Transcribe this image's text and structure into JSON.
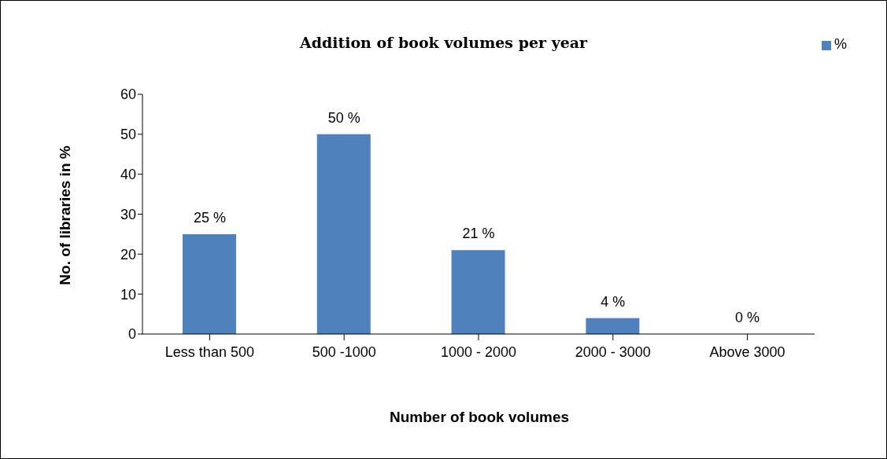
{
  "chart_data": {
    "type": "bar",
    "title": "Addition of book volumes per year",
    "xlabel": "Number of book volumes",
    "ylabel": "No. of libraries in %",
    "categories": [
      "Less than 500",
      "500 -1000",
      "1000 - 2000",
      "2000 - 3000",
      "Above 3000"
    ],
    "series": [
      {
        "name": "%",
        "color": "#4f81bd",
        "values": [
          25,
          50,
          21,
          4,
          0
        ],
        "value_labels": [
          "25 %",
          "50 %",
          "21 %",
          "4 %",
          "0 %"
        ]
      }
    ],
    "ylim": [
      0,
      60
    ],
    "yticks": [
      0,
      10,
      20,
      30,
      40,
      50,
      60
    ],
    "grid": false,
    "legend": "top right"
  }
}
